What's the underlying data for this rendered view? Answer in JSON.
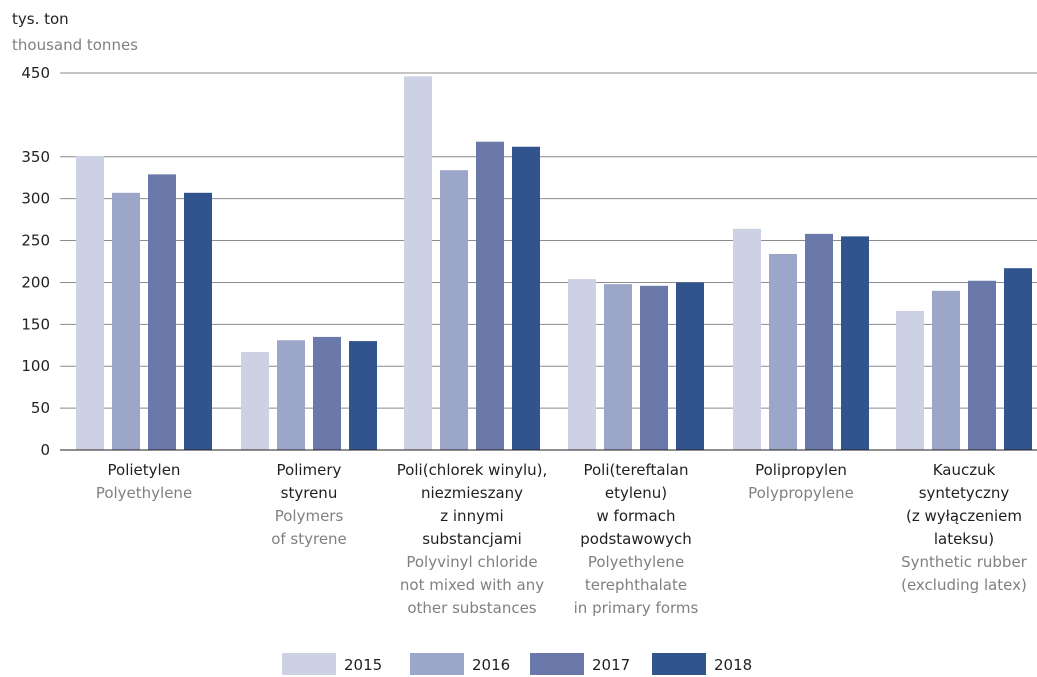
{
  "chart_data": {
    "type": "bar",
    "ylabel": "tys. ton",
    "ylabel_en": "thousand tonnes",
    "ylim": [
      0,
      450
    ],
    "yticks": [
      0,
      50,
      100,
      150,
      200,
      250,
      300,
      350,
      450
    ],
    "grid": true,
    "legend_position": "bottom",
    "categories": [
      {
        "pl": [
          "Polietylen"
        ],
        "en": [
          "Polyethylene"
        ]
      },
      {
        "pl": [
          "Polimery",
          "styrenu"
        ],
        "en": [
          "Polymers",
          "of styrene"
        ]
      },
      {
        "pl": [
          "Poli(chlorek winylu),",
          "niezmieszany",
          "z innymi",
          "substancjami"
        ],
        "en": [
          "Polyvinyl chloride",
          "not mixed with any",
          "other substances"
        ]
      },
      {
        "pl": [
          "Poli(tereftalan",
          "etylenu)",
          "w formach",
          "podstawowych"
        ],
        "en": [
          "Polyethylene",
          "terephthalate",
          "in primary forms"
        ]
      },
      {
        "pl": [
          "Polipropylen"
        ],
        "en": [
          "Polypropylene"
        ]
      },
      {
        "pl": [
          "Kauczuk",
          "syntetyczny",
          "(z wyłączeniem",
          "lateksu)"
        ],
        "en": [
          "Synthetic rubber",
          "(excluding latex)"
        ]
      }
    ],
    "series": [
      {
        "name": "2015",
        "color": "#cdd1e4",
        "values": [
          351,
          117,
          446,
          204,
          264,
          166
        ]
      },
      {
        "name": "2016",
        "color": "#9ca6c8",
        "values": [
          307,
          131,
          334,
          198,
          234,
          190
        ]
      },
      {
        "name": "2017",
        "color": "#6a79aa",
        "values": [
          329,
          135,
          368,
          196,
          258,
          202
        ]
      },
      {
        "name": "2018",
        "color": "#31548f",
        "values": [
          307,
          130,
          362,
          200,
          255,
          217
        ]
      }
    ]
  }
}
